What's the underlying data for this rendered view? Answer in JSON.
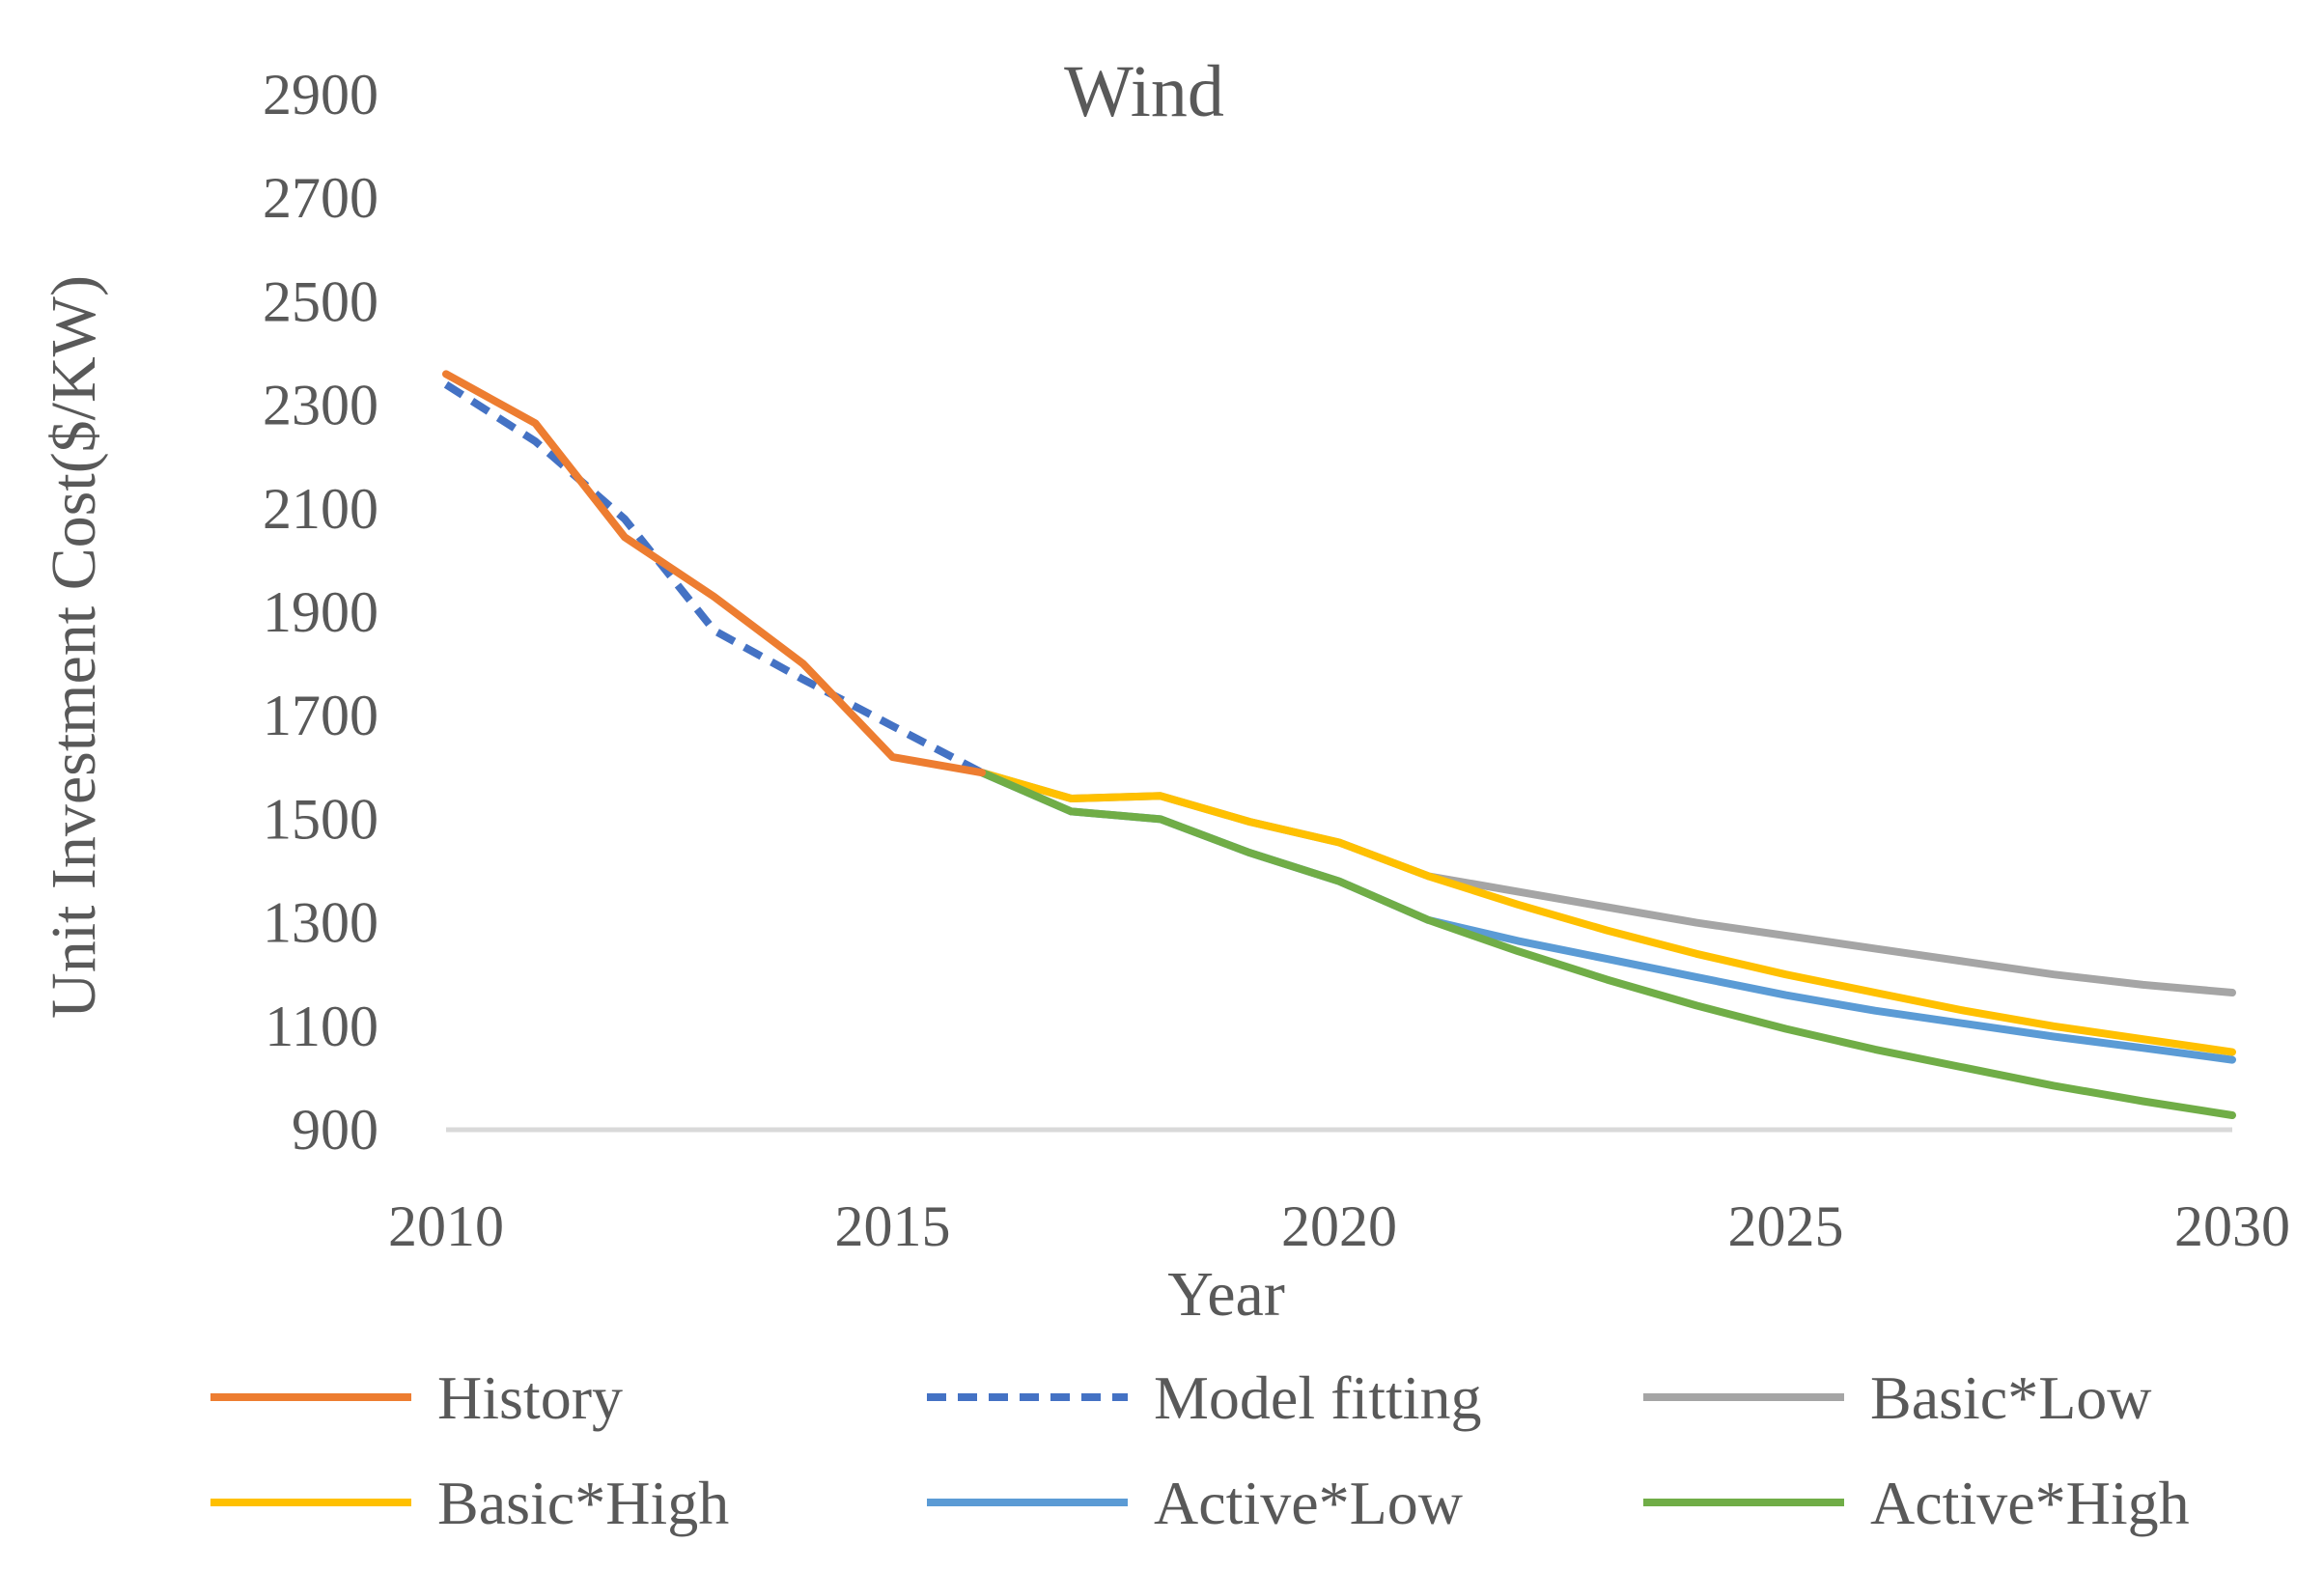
{
  "chart_data": {
    "type": "line",
    "title": "Wind",
    "xlabel": "Year",
    "ylabel": "Unit Investment Cost($/KW)",
    "xlim": [
      2010,
      2030
    ],
    "ylim": [
      900,
      2900
    ],
    "x_ticks": [
      2010,
      2015,
      2020,
      2025,
      2030
    ],
    "y_ticks": [
      900,
      1100,
      1300,
      1500,
      1700,
      1900,
      2100,
      2300,
      2500,
      2700,
      2900
    ],
    "grid": false,
    "legend_position": "bottom",
    "series": [
      {
        "name": "History",
        "color": "#ED7D31",
        "dash": "solid",
        "x": [
          2010,
          2011,
          2012,
          2013,
          2014,
          2015,
          2016
        ],
        "values": [
          2360,
          2265,
          2045,
          1930,
          1800,
          1620,
          1590
        ]
      },
      {
        "name": "Model fitting",
        "color": "#4472C4",
        "dash": "dashed",
        "x": [
          2010,
          2011,
          2012,
          2013,
          2014,
          2015,
          2016
        ],
        "values": [
          2340,
          2230,
          2080,
          1865,
          1770,
          1680,
          1590
        ]
      },
      {
        "name": "Basic*Low",
        "color": "#A5A5A5",
        "dash": "solid",
        "x": [
          2016,
          2017,
          2018,
          2019,
          2020,
          2021,
          2022,
          2023,
          2024,
          2025,
          2026,
          2027,
          2028,
          2029,
          2030
        ],
        "values": [
          1590,
          1540,
          1545,
          1495,
          1455,
          1390,
          1360,
          1330,
          1300,
          1275,
          1250,
          1225,
          1200,
          1180,
          1165
        ]
      },
      {
        "name": "Basic*High",
        "color": "#FFC000",
        "dash": "solid",
        "x": [
          2016,
          2017,
          2018,
          2019,
          2020,
          2021,
          2022,
          2023,
          2024,
          2025,
          2026,
          2027,
          2028,
          2029,
          2030
        ],
        "values": [
          1590,
          1540,
          1545,
          1495,
          1455,
          1390,
          1335,
          1285,
          1240,
          1200,
          1165,
          1130,
          1100,
          1075,
          1050
        ]
      },
      {
        "name": "Active*Low",
        "color": "#5B9BD5",
        "dash": "solid",
        "x": [
          2016,
          2017,
          2018,
          2019,
          2020,
          2021,
          2022,
          2023,
          2024,
          2025,
          2026,
          2027,
          2028,
          2029,
          2030
        ],
        "values": [
          1590,
          1515,
          1500,
          1435,
          1380,
          1305,
          1265,
          1230,
          1195,
          1160,
          1130,
          1105,
          1080,
          1058,
          1035
        ]
      },
      {
        "name": "Active*High",
        "color": "#70AD47",
        "dash": "solid",
        "x": [
          2016,
          2017,
          2018,
          2019,
          2020,
          2021,
          2022,
          2023,
          2024,
          2025,
          2026,
          2027,
          2028,
          2029,
          2030
        ],
        "values": [
          1590,
          1515,
          1500,
          1435,
          1380,
          1305,
          1245,
          1190,
          1140,
          1095,
          1055,
          1020,
          985,
          955,
          928
        ]
      }
    ]
  }
}
